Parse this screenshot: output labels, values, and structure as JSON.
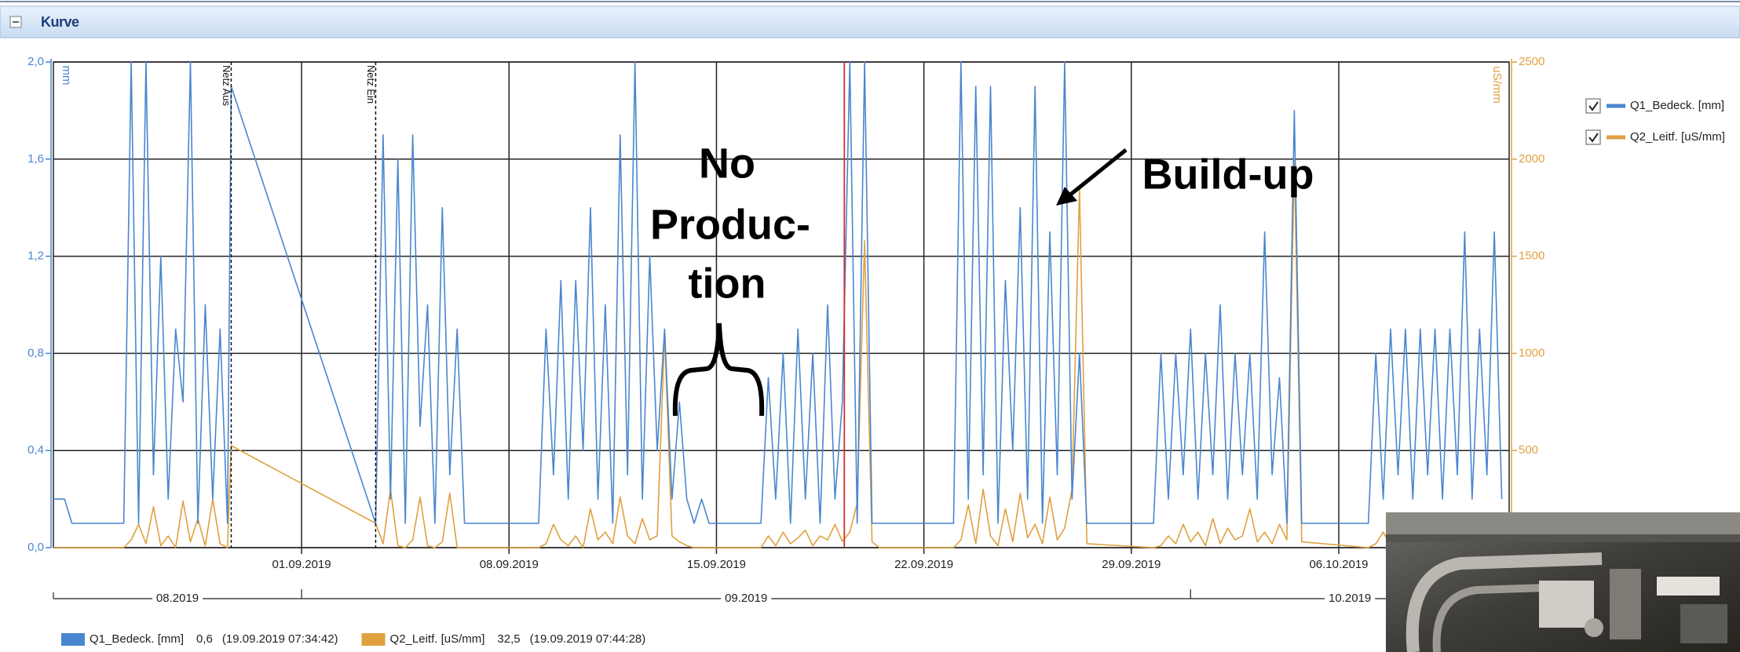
{
  "header": {
    "title": "Kurve"
  },
  "chart_data": {
    "type": "line",
    "x": [
      "23.08.2019 15:00",
      "24.08.2019 00:00",
      "24.08.2019 06:00",
      "25.08.2019 12:00",
      "26.08.2019 00:00",
      "26.08.2019 06:00",
      "26.08.2019 12:00",
      "26.08.2019 18:00",
      "27.08.2019 00:00",
      "27.08.2019 06:00",
      "27.08.2019 12:00",
      "27.08.2019 18:00",
      "28.08.2019 00:00",
      "28.08.2019 06:00",
      "28.08.2019 12:00",
      "28.08.2019 18:00",
      "29.08.2019 00:00",
      "29.08.2019 06:00",
      "29.08.2019 12:00",
      "29.08.2019 15:00",
      "03.09.2019 12:00",
      "03.09.2019 18:00",
      "04.09.2019 00:00",
      "04.09.2019 06:00",
      "04.09.2019 12:00",
      "04.09.2019 18:00",
      "05.09.2019 00:00",
      "05.09.2019 06:00",
      "05.09.2019 12:00",
      "05.09.2019 18:00",
      "06.09.2019 00:00",
      "06.09.2019 06:00",
      "06.09.2019 12:00",
      "09.09.2019 00:00",
      "09.09.2019 06:00",
      "09.09.2019 12:00",
      "09.09.2019 18:00",
      "10.09.2019 00:00",
      "10.09.2019 06:00",
      "10.09.2019 12:00",
      "10.09.2019 18:00",
      "11.09.2019 00:00",
      "11.09.2019 06:00",
      "11.09.2019 12:00",
      "11.09.2019 18:00",
      "12.09.2019 00:00",
      "12.09.2019 06:00",
      "12.09.2019 12:00",
      "12.09.2019 18:00",
      "13.09.2019 00:00",
      "13.09.2019 06:00",
      "13.09.2019 12:00",
      "13.09.2019 18:00",
      "14.09.2019 00:00",
      "14.09.2019 06:00",
      "14.09.2019 12:00",
      "14.09.2019 18:00",
      "16.09.2019 12:00",
      "16.09.2019 18:00",
      "17.09.2019 00:00",
      "17.09.2019 06:00",
      "17.09.2019 12:00",
      "17.09.2019 18:00",
      "18.09.2019 00:00",
      "18.09.2019 06:00",
      "18.09.2019 12:00",
      "18.09.2019 18:00",
      "19.09.2019 00:00",
      "19.09.2019 06:00",
      "19.09.2019 12:00",
      "19.09.2019 18:00",
      "20.09.2019 00:00",
      "20.09.2019 06:00",
      "20.09.2019 12:00",
      "23.09.2019 00:00",
      "23.09.2019 06:00",
      "23.09.2019 12:00",
      "23.09.2019 18:00",
      "24.09.2019 00:00",
      "24.09.2019 06:00",
      "24.09.2019 12:00",
      "24.09.2019 18:00",
      "25.09.2019 00:00",
      "25.09.2019 06:00",
      "25.09.2019 12:00",
      "25.09.2019 18:00",
      "26.09.2019 00:00",
      "26.09.2019 06:00",
      "26.09.2019 12:00",
      "26.09.2019 18:00",
      "27.09.2019 00:00",
      "27.09.2019 06:00",
      "27.09.2019 12:00",
      "29.09.2019 18:00",
      "30.09.2019 00:00",
      "30.09.2019 06:00",
      "30.09.2019 12:00",
      "30.09.2019 18:00",
      "01.10.2019 00:00",
      "01.10.2019 06:00",
      "01.10.2019 12:00",
      "01.10.2019 18:00",
      "02.10.2019 00:00",
      "02.10.2019 06:00",
      "02.10.2019 12:00",
      "02.10.2019 18:00",
      "03.10.2019 00:00",
      "03.10.2019 06:00",
      "03.10.2019 12:00",
      "03.10.2019 18:00",
      "04.10.2019 00:00",
      "04.10.2019 06:00",
      "04.10.2019 12:00",
      "04.10.2019 18:00",
      "07.10.2019 00:00",
      "07.10.2019 06:00",
      "07.10.2019 12:00",
      "07.10.2019 18:00",
      "08.10.2019 00:00",
      "08.10.2019 06:00",
      "08.10.2019 12:00",
      "08.10.2019 18:00",
      "09.10.2019 00:00",
      "09.10.2019 06:00",
      "09.10.2019 12:00",
      "09.10.2019 18:00",
      "10.10.2019 00:00",
      "10.10.2019 06:00",
      "10.10.2019 12:00",
      "10.10.2019 18:00",
      "11.10.2019 00:00",
      "11.10.2019 06:00",
      "11.10.2019 12:00"
    ],
    "series": [
      {
        "name": "Q1_Bedeck. [mm]",
        "color": "#4a86cf",
        "axis": "y",
        "values": [
          0.2,
          0.2,
          0.1,
          0.1,
          0.1,
          2.0,
          0.1,
          2.0,
          0.3,
          1.2,
          0.2,
          0.9,
          0.6,
          2.0,
          0.1,
          1.0,
          0.2,
          0.9,
          0.1,
          1.9,
          0.1,
          1.7,
          0.2,
          1.6,
          0.1,
          1.7,
          0.5,
          1.0,
          0.1,
          1.4,
          0.3,
          0.9,
          0.1,
          0.1,
          0.9,
          0.3,
          1.1,
          0.2,
          1.1,
          0.4,
          1.4,
          0.2,
          1.0,
          0.1,
          1.7,
          0.3,
          2.0,
          0.2,
          1.2,
          0.4,
          0.9,
          0.2,
          0.6,
          0.2,
          0.1,
          0.2,
          0.1,
          0.1,
          0.7,
          0.2,
          0.8,
          0.1,
          0.9,
          0.2,
          0.8,
          0.1,
          1.0,
          0.2,
          0.6,
          2.0,
          0.1,
          2.0,
          0.1,
          0.1,
          0.1,
          2.0,
          0.2,
          1.9,
          0.3,
          1.9,
          0.1,
          1.1,
          0.4,
          1.4,
          0.2,
          1.9,
          0.1,
          1.3,
          0.3,
          2.0,
          0.2,
          0.8,
          0.1,
          0.1,
          0.8,
          0.2,
          0.8,
          0.3,
          0.9,
          0.2,
          0.8,
          0.3,
          1.0,
          0.2,
          0.8,
          0.3,
          0.8,
          0.2,
          1.3,
          0.3,
          0.7,
          0.1,
          1.8,
          0.1,
          0.1,
          0.8,
          0.2,
          0.9,
          0.3,
          0.9,
          0.2,
          0.9,
          0.3,
          0.9,
          0.2,
          0.9,
          0.3,
          1.3,
          0.2,
          0.9,
          0.3,
          1.3,
          0.2
        ]
      },
      {
        "name": "Q2_Leitf. [uS/mm]",
        "color": "#e0a040",
        "axis": "y2",
        "values": [
          0,
          0,
          0,
          0,
          0,
          40,
          120,
          20,
          210,
          10,
          60,
          0,
          240,
          30,
          150,
          10,
          250,
          20,
          0,
          525,
          125,
          20,
          300,
          10,
          0,
          40,
          260,
          10,
          0,
          30,
          280,
          0,
          0,
          0,
          20,
          120,
          40,
          10,
          60,
          0,
          200,
          40,
          80,
          20,
          260,
          60,
          20,
          150,
          40,
          60,
          1100,
          60,
          30,
          10,
          0,
          0,
          0,
          0,
          60,
          10,
          80,
          20,
          50,
          90,
          10,
          60,
          40,
          120,
          32.5,
          80,
          230,
          1580,
          30,
          0,
          0,
          40,
          220,
          20,
          300,
          60,
          10,
          200,
          30,
          280,
          50,
          120,
          20,
          260,
          40,
          100,
          300,
          1850,
          20,
          0,
          10,
          60,
          20,
          120,
          30,
          80,
          10,
          150,
          20,
          100,
          40,
          60,
          200,
          30,
          80,
          20,
          120,
          40,
          2000,
          30,
          0,
          20,
          80,
          10,
          120,
          30,
          60,
          10,
          90,
          20,
          50,
          30,
          80,
          20,
          60,
          10,
          40,
          20,
          10
        ]
      }
    ],
    "xlim": [
      "23.08.2019 15:00",
      "11.10.2019 18:00"
    ],
    "xticks": [
      "01.09.2019",
      "08.09.2019",
      "15.09.2019",
      "22.09.2019",
      "29.09.2019",
      "06.10.2019"
    ],
    "ylim": [
      0,
      2
    ],
    "yticks": [
      {
        "value": 0,
        "label": "0,0"
      },
      {
        "value": 0.4,
        "label": "0,4"
      },
      {
        "value": 0.8,
        "label": "0,8"
      },
      {
        "value": 1.2,
        "label": "1,2"
      },
      {
        "value": 1.6,
        "label": "1,6"
      },
      {
        "value": 2,
        "label": "2,0"
      }
    ],
    "y_label": "mm",
    "y2lim": [
      0,
      2500
    ],
    "y2ticks": [
      500,
      1000,
      1500,
      2000,
      2500
    ],
    "y2_label": "uS/mm",
    "grid": true,
    "month_axis": {
      "ticks": [
        "01.09.2019",
        "01.10.2019"
      ],
      "labels": [
        "08.2019",
        "09.2019",
        "10.2019"
      ]
    },
    "markers": [
      {
        "label": "Netz Aus",
        "x": "29.08.2019 15:00"
      },
      {
        "label": "Netz Ein",
        "x": "03.09.2019 12:00"
      }
    ],
    "cursor_color": "#d03030",
    "readout": [
      {
        "value": 0.6,
        "value_label": "0,6",
        "time": "(19.09.2019 07:34:42)"
      },
      {
        "value": 32.5,
        "value_label": "32,5",
        "time": "(19.09.2019 07:44:28)"
      }
    ],
    "annotations": {
      "no_production": [
        "No",
        "Produc-",
        "tion"
      ],
      "build_up": "Build-up"
    }
  }
}
